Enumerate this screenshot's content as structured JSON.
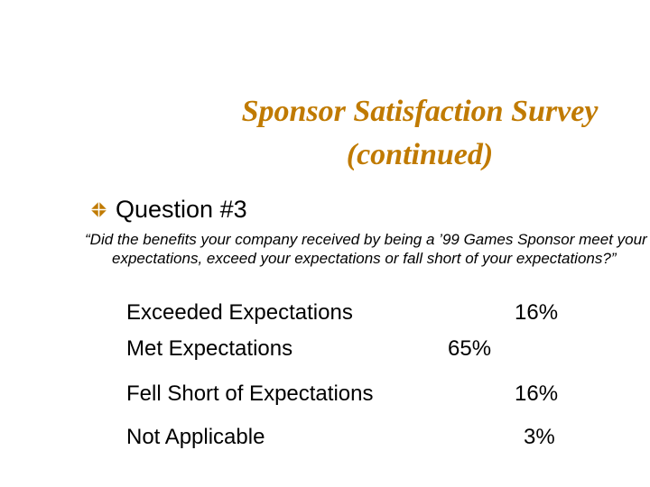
{
  "slide": {
    "title_line1": "Sponsor Satisfaction Survey",
    "title_line2": "(continued)",
    "accent_color": "#c07a00",
    "bullet_icon": "diamond-bullet-icon",
    "question_label": "Question #3",
    "question_text": "“Did the benefits your company received by being a ’99 Games Sponsor meet your expectations, exceed your expectations or fall short of your expectations?”",
    "results": [
      {
        "label": "Exceeded Expectations",
        "value": "16%"
      },
      {
        "label": "Met Expectations",
        "value": "65%"
      },
      {
        "label": "Fell Short of Expectations",
        "value": "16%"
      },
      {
        "label": "Not Applicable",
        "value": "3%"
      }
    ]
  }
}
